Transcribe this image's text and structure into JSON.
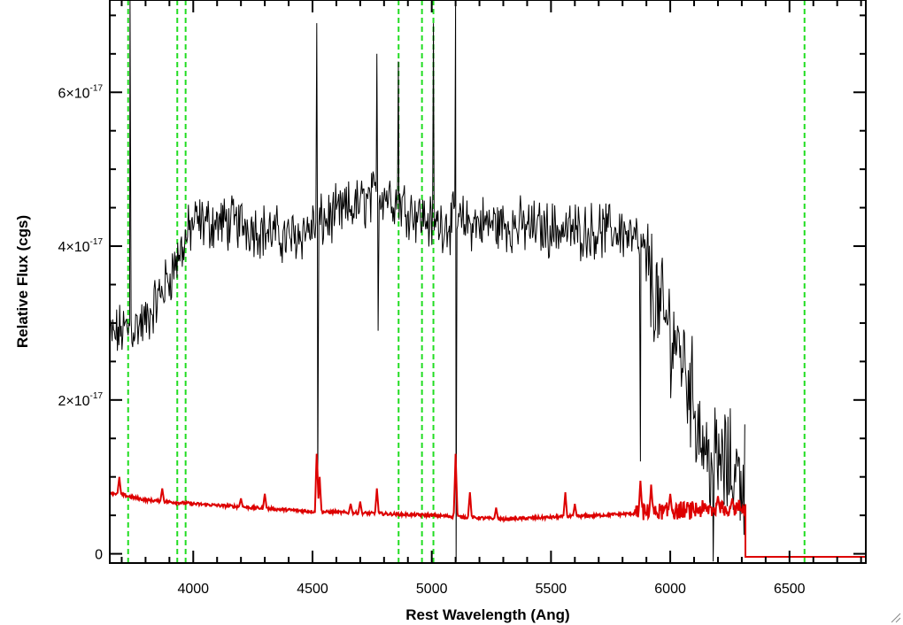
{
  "chart_data": {
    "type": "line",
    "title": "",
    "xlabel": "Rest Wavelength (Ang)",
    "ylabel": "Relative Flux (cgs)",
    "xlim": [
      3650,
      6820
    ],
    "ylim": [
      -1.2e-18,
      7.2e-17
    ],
    "x_ticks": [
      4000,
      4500,
      5000,
      5500,
      6000,
      6500
    ],
    "x_tick_labels": [
      "4000",
      "4500",
      "5000",
      "5500",
      "6000",
      "6500"
    ],
    "y_ticks": [
      0,
      2e-17,
      4e-17,
      6e-17
    ],
    "y_tick_labels": [
      {
        "mantissa": "0",
        "exp": ""
      },
      {
        "mantissa": "2×10",
        "exp": "-17"
      },
      {
        "mantissa": "4×10",
        "exp": "-17"
      },
      {
        "mantissa": "6×10",
        "exp": "-17"
      }
    ],
    "grid": false,
    "series": [
      {
        "color": "#000000",
        "style": "noisy-spectrum",
        "continuum": [
          [
            3650,
            2.8e-17
          ],
          [
            3700,
            2.9e-17
          ],
          [
            3800,
            3e-17
          ],
          [
            3900,
            3.6e-17
          ],
          [
            4000,
            4.3e-17
          ],
          [
            4200,
            4.3e-17
          ],
          [
            4400,
            4.1e-17
          ],
          [
            4600,
            4.4e-17
          ],
          [
            4800,
            4.7e-17
          ],
          [
            4900,
            4.5e-17
          ],
          [
            5000,
            4.3e-17
          ],
          [
            5200,
            4.3e-17
          ],
          [
            5400,
            4.25e-17
          ],
          [
            5600,
            4.2e-17
          ],
          [
            5800,
            4.2e-17
          ],
          [
            5880,
            4e-17
          ],
          [
            5950,
            3.2e-17
          ],
          [
            6050,
            2.6e-17
          ],
          [
            6150,
            1.3e-17
          ],
          [
            6250,
            1.1e-17
          ],
          [
            6315,
            1e-17
          ]
        ],
        "features": [
          {
            "x": 3735,
            "y": 7.3e-17
          },
          {
            "x": 4518,
            "y": 6.9e-17
          },
          {
            "x": 4522,
            "y": 9e-18
          },
          {
            "x": 4770,
            "y": 6.5e-17
          },
          {
            "x": 4775,
            "y": 2.9e-17
          },
          {
            "x": 4860,
            "y": 6.4e-17
          },
          {
            "x": 5007,
            "y": 6.9e-17
          },
          {
            "x": 5100,
            "y": 7.3e-17
          },
          {
            "x": 5102,
            "y": -1e-18
          },
          {
            "x": 5875,
            "y": 1.2e-17
          },
          {
            "x": 6180,
            "y": -1e-18
          }
        ]
      },
      {
        "color": "#dd0000",
        "style": "model",
        "baseline": [
          [
            3650,
            8e-18
          ],
          [
            3800,
            7e-18
          ],
          [
            4000,
            6.5e-18
          ],
          [
            4500,
            5.5e-18
          ],
          [
            5000,
            5e-18
          ],
          [
            5300,
            4.5e-18
          ],
          [
            5700,
            5e-18
          ],
          [
            6000,
            5.5e-18
          ],
          [
            6315,
            6e-18
          ]
        ],
        "peaks": [
          {
            "x": 3690,
            "y": 1e-17
          },
          {
            "x": 3870,
            "y": 8.5e-18
          },
          {
            "x": 4200,
            "y": 7.2e-18
          },
          {
            "x": 4300,
            "y": 7.8e-18
          },
          {
            "x": 4518,
            "y": 1.35e-17
          },
          {
            "x": 4530,
            "y": 1e-17
          },
          {
            "x": 4660,
            "y": 6.5e-18
          },
          {
            "x": 4700,
            "y": 6.8e-18
          },
          {
            "x": 4770,
            "y": 8.5e-18
          },
          {
            "x": 5100,
            "y": 1.3e-17
          },
          {
            "x": 5160,
            "y": 8e-18
          },
          {
            "x": 5270,
            "y": 6e-18
          },
          {
            "x": 5560,
            "y": 8e-18
          },
          {
            "x": 5600,
            "y": 6.5e-18
          },
          {
            "x": 5875,
            "y": 9.5e-18
          },
          {
            "x": 5920,
            "y": 9e-18
          },
          {
            "x": 6000,
            "y": 7.8e-18
          },
          {
            "x": 6200,
            "y": 7.5e-18
          },
          {
            "x": 6260,
            "y": 7.2e-18
          }
        ],
        "drop_x": 6315,
        "end_x": 6820,
        "end_y": -4e-19
      }
    ],
    "vlines": {
      "color": "#22dd22",
      "style": "dashed",
      "x": [
        3727,
        3933,
        3968,
        4861,
        4959,
        5007,
        6563
      ]
    }
  }
}
